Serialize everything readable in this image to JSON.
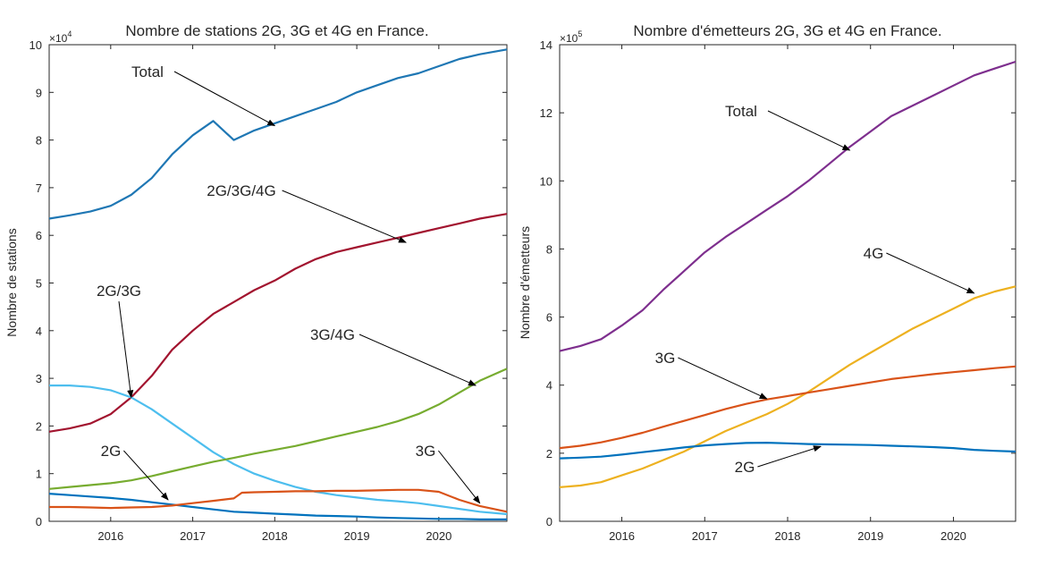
{
  "chart_data": [
    {
      "type": "line",
      "title": "Nombre de stations 2G, 3G et 4G en France.",
      "xlabel": "",
      "ylabel": "Nombre de stations",
      "y_multiplier": "×10",
      "y_exponent": "4",
      "xlim": [
        2015.25,
        2020.83
      ],
      "ylim": [
        0,
        10
      ],
      "x_ticks": [
        2016,
        2017,
        2018,
        2019,
        2020
      ],
      "y_ticks": [
        0,
        1,
        2,
        3,
        4,
        5,
        6,
        7,
        8,
        9,
        10
      ],
      "grid": false,
      "legend": "none",
      "series": [
        {
          "name": "Total",
          "color": "#1f77b4",
          "x": [
            2015.25,
            2015.5,
            2015.75,
            2016.0,
            2016.25,
            2016.5,
            2016.75,
            2017.0,
            2017.25,
            2017.5,
            2017.75,
            2018.0,
            2018.25,
            2018.5,
            2018.75,
            2019.0,
            2019.25,
            2019.5,
            2019.75,
            2020.0,
            2020.25,
            2020.5,
            2020.83
          ],
          "y": [
            6.35,
            6.42,
            6.5,
            6.62,
            6.85,
            7.2,
            7.7,
            8.1,
            8.4,
            8.0,
            8.2,
            8.35,
            8.5,
            8.65,
            8.8,
            9.0,
            9.15,
            9.3,
            9.4,
            9.55,
            9.7,
            9.8,
            9.9
          ]
        },
        {
          "name": "2G/3G/4G",
          "color": "#a2142f",
          "x": [
            2015.25,
            2015.5,
            2015.75,
            2016.0,
            2016.25,
            2016.5,
            2016.75,
            2017.0,
            2017.25,
            2017.5,
            2017.75,
            2018.0,
            2018.25,
            2018.5,
            2018.75,
            2019.0,
            2019.25,
            2019.5,
            2019.75,
            2020.0,
            2020.25,
            2020.5,
            2020.83
          ],
          "y": [
            1.88,
            1.95,
            2.05,
            2.25,
            2.6,
            3.05,
            3.6,
            4.0,
            4.35,
            4.6,
            4.85,
            5.05,
            5.3,
            5.5,
            5.65,
            5.75,
            5.85,
            5.95,
            6.05,
            6.15,
            6.25,
            6.35,
            6.45
          ]
        },
        {
          "name": "2G/3G",
          "color": "#4dbeee",
          "x": [
            2015.25,
            2015.5,
            2015.75,
            2016.0,
            2016.25,
            2016.5,
            2016.75,
            2017.0,
            2017.25,
            2017.5,
            2017.75,
            2018.0,
            2018.25,
            2018.5,
            2018.75,
            2019.0,
            2019.25,
            2019.5,
            2019.75,
            2020.0,
            2020.25,
            2020.5,
            2020.83
          ],
          "y": [
            2.85,
            2.85,
            2.82,
            2.75,
            2.6,
            2.35,
            2.05,
            1.75,
            1.45,
            1.2,
            1.0,
            0.85,
            0.72,
            0.62,
            0.55,
            0.5,
            0.45,
            0.42,
            0.38,
            0.32,
            0.26,
            0.2,
            0.15
          ]
        },
        {
          "name": "3G/4G",
          "color": "#77ac30",
          "x": [
            2015.25,
            2015.5,
            2015.75,
            2016.0,
            2016.25,
            2016.5,
            2016.75,
            2017.0,
            2017.25,
            2017.5,
            2017.75,
            2018.0,
            2018.25,
            2018.5,
            2018.75,
            2019.0,
            2019.25,
            2019.5,
            2019.75,
            2020.0,
            2020.25,
            2020.5,
            2020.83
          ],
          "y": [
            0.68,
            0.72,
            0.76,
            0.8,
            0.86,
            0.95,
            1.05,
            1.15,
            1.25,
            1.33,
            1.42,
            1.5,
            1.58,
            1.68,
            1.78,
            1.88,
            1.98,
            2.1,
            2.25,
            2.45,
            2.7,
            2.95,
            3.2
          ]
        },
        {
          "name": "2G",
          "color": "#0072bd",
          "x": [
            2015.25,
            2015.5,
            2015.75,
            2016.0,
            2016.25,
            2016.5,
            2016.75,
            2017.0,
            2017.25,
            2017.5,
            2017.75,
            2018.0,
            2018.25,
            2018.5,
            2018.75,
            2019.0,
            2019.25,
            2019.5,
            2019.75,
            2020.0,
            2020.25,
            2020.5,
            2020.83
          ],
          "y": [
            0.58,
            0.55,
            0.52,
            0.49,
            0.45,
            0.4,
            0.35,
            0.3,
            0.25,
            0.2,
            0.18,
            0.16,
            0.14,
            0.12,
            0.11,
            0.1,
            0.08,
            0.07,
            0.06,
            0.05,
            0.05,
            0.04,
            0.04
          ]
        },
        {
          "name": "3G",
          "color": "#d95319",
          "x": [
            2015.25,
            2015.5,
            2015.75,
            2016.0,
            2016.25,
            2016.5,
            2016.75,
            2017.0,
            2017.25,
            2017.5,
            2017.6,
            2017.75,
            2018.0,
            2018.25,
            2018.5,
            2018.75,
            2019.0,
            2019.25,
            2019.5,
            2019.75,
            2020.0,
            2020.25,
            2020.5,
            2020.83
          ],
          "y": [
            0.3,
            0.3,
            0.29,
            0.28,
            0.29,
            0.3,
            0.33,
            0.38,
            0.43,
            0.48,
            0.6,
            0.61,
            0.62,
            0.63,
            0.63,
            0.64,
            0.64,
            0.65,
            0.66,
            0.66,
            0.62,
            0.45,
            0.32,
            0.2
          ]
        }
      ],
      "annotations": [
        {
          "text": "Total",
          "target_x": 2018.0,
          "target_y": 8.3
        },
        {
          "text": "2G/3G/4G",
          "target_x": 2019.6,
          "target_y": 5.85
        },
        {
          "text": "2G/3G",
          "target_x": 2016.25,
          "target_y": 2.6
        },
        {
          "text": "3G/4G",
          "target_x": 2020.45,
          "target_y": 2.85
        },
        {
          "text": "2G",
          "target_x": 2016.7,
          "target_y": 0.45
        },
        {
          "text": "3G",
          "target_x": 2020.5,
          "target_y": 0.38
        }
      ]
    },
    {
      "type": "line",
      "title": "Nombre d'émetteurs 2G, 3G et 4G en France.",
      "xlabel": "",
      "ylabel": "Nombre d'émetteurs",
      "y_multiplier": "×10",
      "y_exponent": "5",
      "xlim": [
        2015.25,
        2020.75
      ],
      "ylim": [
        0,
        14
      ],
      "x_ticks": [
        2016,
        2017,
        2018,
        2019,
        2020
      ],
      "y_ticks": [
        0,
        2,
        4,
        6,
        8,
        10,
        12,
        14
      ],
      "grid": false,
      "legend": "none",
      "series": [
        {
          "name": "Total",
          "color": "#7e2f8e",
          "x": [
            2015.25,
            2015.5,
            2015.75,
            2016.0,
            2016.25,
            2016.5,
            2016.75,
            2017.0,
            2017.25,
            2017.5,
            2017.75,
            2018.0,
            2018.25,
            2018.5,
            2018.75,
            2019.0,
            2019.25,
            2019.5,
            2019.75,
            2020.0,
            2020.25,
            2020.5,
            2020.75
          ],
          "y": [
            5.0,
            5.15,
            5.35,
            5.75,
            6.2,
            6.8,
            7.35,
            7.9,
            8.35,
            8.75,
            9.15,
            9.55,
            10.0,
            10.5,
            11.0,
            11.45,
            11.9,
            12.2,
            12.5,
            12.8,
            13.1,
            13.3,
            13.5
          ]
        },
        {
          "name": "4G",
          "color": "#edb120",
          "x": [
            2015.25,
            2015.5,
            2015.75,
            2016.0,
            2016.25,
            2016.5,
            2016.75,
            2017.0,
            2017.25,
            2017.5,
            2017.75,
            2018.0,
            2018.25,
            2018.5,
            2018.75,
            2019.0,
            2019.25,
            2019.5,
            2019.75,
            2020.0,
            2020.25,
            2020.5,
            2020.75
          ],
          "y": [
            1.0,
            1.05,
            1.15,
            1.35,
            1.55,
            1.8,
            2.05,
            2.35,
            2.65,
            2.9,
            3.15,
            3.45,
            3.8,
            4.2,
            4.6,
            4.95,
            5.3,
            5.65,
            5.95,
            6.25,
            6.55,
            6.75,
            6.9
          ]
        },
        {
          "name": "3G",
          "color": "#d95319",
          "x": [
            2015.25,
            2015.5,
            2015.75,
            2016.0,
            2016.25,
            2016.5,
            2016.75,
            2017.0,
            2017.25,
            2017.5,
            2017.75,
            2018.0,
            2018.25,
            2018.5,
            2018.75,
            2019.0,
            2019.25,
            2019.5,
            2019.75,
            2020.0,
            2020.25,
            2020.5,
            2020.75
          ],
          "y": [
            2.15,
            2.22,
            2.32,
            2.45,
            2.6,
            2.78,
            2.95,
            3.12,
            3.3,
            3.45,
            3.58,
            3.68,
            3.78,
            3.88,
            3.98,
            4.08,
            4.18,
            4.25,
            4.32,
            4.38,
            4.44,
            4.5,
            4.55
          ]
        },
        {
          "name": "2G",
          "color": "#0072bd",
          "x": [
            2015.25,
            2015.5,
            2015.75,
            2016.0,
            2016.25,
            2016.5,
            2016.75,
            2017.0,
            2017.25,
            2017.5,
            2017.75,
            2018.0,
            2018.25,
            2018.5,
            2018.75,
            2019.0,
            2019.25,
            2019.5,
            2019.75,
            2020.0,
            2020.25,
            2020.5,
            2020.75
          ],
          "y": [
            1.85,
            1.87,
            1.9,
            1.96,
            2.03,
            2.1,
            2.17,
            2.23,
            2.27,
            2.3,
            2.31,
            2.29,
            2.27,
            2.26,
            2.25,
            2.24,
            2.22,
            2.2,
            2.18,
            2.15,
            2.1,
            2.07,
            2.05
          ]
        }
      ],
      "annotations": [
        {
          "text": "Total",
          "target_x": 2018.75,
          "target_y": 10.9
        },
        {
          "text": "4G",
          "target_x": 2020.25,
          "target_y": 6.7
        },
        {
          "text": "3G",
          "target_x": 2017.75,
          "target_y": 3.6
        },
        {
          "text": "2G",
          "target_x": 2018.4,
          "target_y": 2.2
        }
      ]
    }
  ]
}
